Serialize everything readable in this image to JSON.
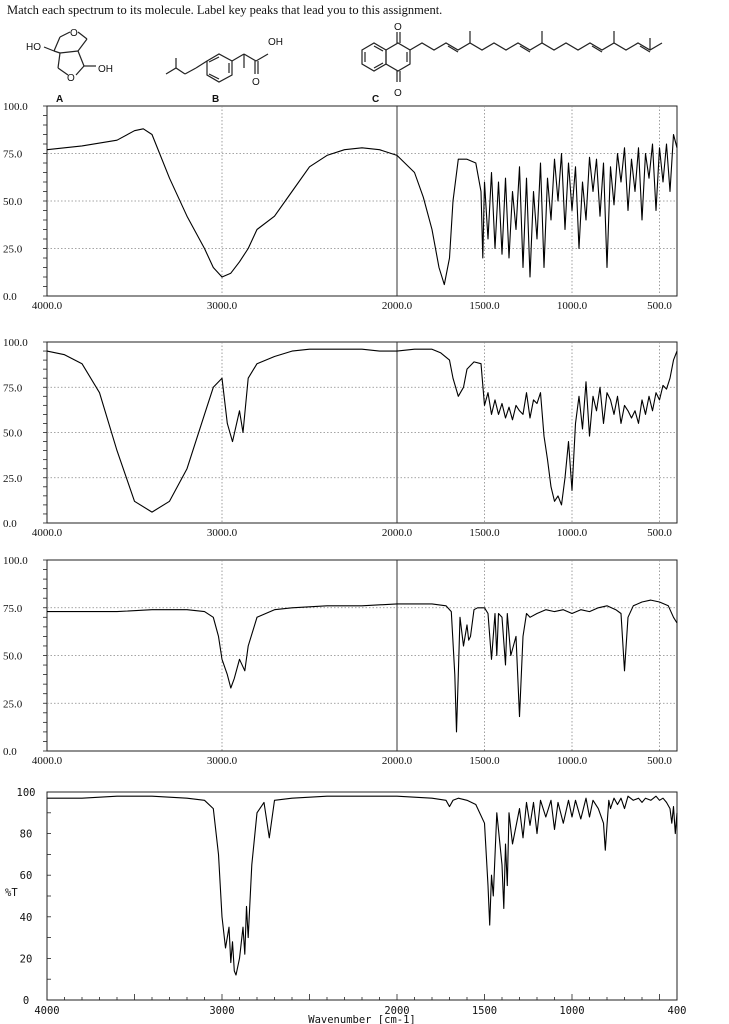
{
  "header": {
    "instruction": "Match each spectrum to its molecule. Label key peaks that lead you to this assignment."
  },
  "molecules": [
    {
      "label": "A",
      "atoms": [
        "HO",
        "O",
        "O",
        "OH"
      ]
    },
    {
      "label": "B",
      "atoms": [
        "OH",
        "O"
      ]
    },
    {
      "label": "C",
      "atoms": [
        "O",
        "O"
      ]
    }
  ],
  "chart_data": [
    {
      "type": "line",
      "xlim": [
        4000,
        400
      ],
      "ylim": [
        0,
        100
      ],
      "xticks": [
        "4000.0",
        "3000.0",
        "2000.0",
        "1500.0",
        "1000.0",
        "500.0"
      ],
      "yticks": [
        "100.0",
        "75.0",
        "50.0",
        "25.0",
        "0.0"
      ],
      "grid": true,
      "x": [
        4000,
        3800,
        3600,
        3500,
        3450,
        3400,
        3300,
        3200,
        3100,
        3050,
        3000,
        2950,
        2900,
        2850,
        2800,
        2700,
        2600,
        2500,
        2400,
        2300,
        2200,
        2100,
        2000,
        1900,
        1850,
        1800,
        1760,
        1730,
        1700,
        1680,
        1650,
        1600,
        1550,
        1520,
        1510,
        1500,
        1480,
        1460,
        1440,
        1420,
        1400,
        1380,
        1360,
        1340,
        1320,
        1300,
        1280,
        1260,
        1240,
        1220,
        1200,
        1180,
        1160,
        1140,
        1120,
        1100,
        1080,
        1060,
        1040,
        1020,
        1000,
        980,
        960,
        940,
        920,
        900,
        880,
        860,
        840,
        820,
        800,
        780,
        760,
        740,
        720,
        700,
        680,
        660,
        640,
        620,
        600,
        580,
        560,
        540,
        520,
        500,
        480,
        460,
        440,
        420,
        400
      ],
      "y": [
        77,
        79,
        82,
        87,
        88,
        85,
        62,
        42,
        25,
        15,
        10,
        12,
        18,
        25,
        35,
        42,
        55,
        68,
        74,
        77,
        78,
        77,
        74,
        65,
        52,
        35,
        15,
        6,
        20,
        50,
        72,
        72,
        70,
        55,
        20,
        60,
        30,
        65,
        25,
        60,
        22,
        62,
        20,
        55,
        35,
        68,
        15,
        62,
        10,
        55,
        30,
        70,
        15,
        62,
        40,
        72,
        50,
        75,
        35,
        70,
        45,
        68,
        25,
        60,
        40,
        73,
        55,
        72,
        42,
        70,
        15,
        68,
        48,
        75,
        60,
        78,
        45,
        72,
        55,
        78,
        40,
        75,
        62,
        80,
        45,
        78,
        60,
        80,
        55,
        85,
        78
      ]
    },
    {
      "type": "line",
      "xlim": [
        4000,
        400
      ],
      "ylim": [
        0,
        100
      ],
      "xticks": [
        "4000.0",
        "3000.0",
        "2000.0",
        "1500.0",
        "1000.0",
        "500.0"
      ],
      "yticks": [
        "100.0",
        "75.0",
        "50.0",
        "25.0",
        "0.0"
      ],
      "grid": true,
      "x": [
        4000,
        3900,
        3800,
        3700,
        3600,
        3500,
        3400,
        3300,
        3200,
        3100,
        3050,
        3000,
        2970,
        2940,
        2900,
        2880,
        2850,
        2800,
        2700,
        2600,
        2500,
        2400,
        2300,
        2200,
        2100,
        2000,
        1900,
        1800,
        1750,
        1700,
        1680,
        1650,
        1620,
        1600,
        1560,
        1520,
        1500,
        1480,
        1460,
        1440,
        1420,
        1400,
        1380,
        1360,
        1340,
        1320,
        1300,
        1280,
        1260,
        1240,
        1220,
        1200,
        1180,
        1160,
        1140,
        1120,
        1100,
        1080,
        1060,
        1040,
        1020,
        1000,
        980,
        960,
        940,
        920,
        900,
        880,
        860,
        840,
        820,
        800,
        780,
        760,
        740,
        720,
        700,
        680,
        660,
        640,
        620,
        600,
        580,
        560,
        540,
        520,
        500,
        480,
        460,
        440,
        420,
        400
      ],
      "y": [
        95,
        93,
        88,
        72,
        40,
        12,
        6,
        12,
        30,
        60,
        75,
        80,
        55,
        45,
        62,
        50,
        80,
        88,
        92,
        95,
        96,
        96,
        96,
        96,
        95,
        95,
        96,
        96,
        94,
        90,
        80,
        70,
        75,
        85,
        89,
        88,
        65,
        72,
        60,
        68,
        60,
        66,
        58,
        64,
        57,
        65,
        62,
        60,
        72,
        58,
        68,
        66,
        72,
        48,
        35,
        20,
        12,
        15,
        10,
        25,
        45,
        18,
        55,
        70,
        52,
        78,
        48,
        70,
        62,
        75,
        55,
        72,
        68,
        60,
        70,
        55,
        65,
        62,
        58,
        62,
        55,
        68,
        60,
        70,
        62,
        72,
        68,
        76,
        74,
        80,
        90,
        95
      ]
    },
    {
      "type": "line",
      "xlim": [
        4000,
        400
      ],
      "ylim": [
        0,
        100
      ],
      "xticks": [
        "4000.0",
        "3000.0",
        "2000.0",
        "1500.0",
        "1000.0",
        "500.0"
      ],
      "yticks": [
        "100.0",
        "75.0",
        "50.0",
        "25.0",
        "0.0"
      ],
      "grid": true,
      "x": [
        4000,
        3800,
        3600,
        3400,
        3200,
        3100,
        3050,
        3020,
        3000,
        2970,
        2950,
        2930,
        2900,
        2870,
        2850,
        2800,
        2700,
        2600,
        2400,
        2200,
        2000,
        1800,
        1720,
        1690,
        1670,
        1660,
        1650,
        1640,
        1620,
        1600,
        1590,
        1580,
        1560,
        1540,
        1500,
        1480,
        1460,
        1440,
        1430,
        1420,
        1400,
        1380,
        1370,
        1350,
        1320,
        1300,
        1280,
        1260,
        1240,
        1200,
        1150,
        1100,
        1050,
        1000,
        950,
        900,
        850,
        800,
        750,
        720,
        700,
        680,
        650,
        600,
        550,
        500,
        450,
        420,
        400
      ],
      "y": [
        73,
        73,
        73,
        74,
        74,
        73,
        70,
        60,
        48,
        40,
        33,
        38,
        48,
        42,
        55,
        70,
        74,
        75,
        76,
        76,
        77,
        77,
        76,
        73,
        40,
        10,
        40,
        70,
        55,
        66,
        58,
        60,
        74,
        75,
        75,
        72,
        48,
        72,
        50,
        72,
        70,
        45,
        72,
        50,
        60,
        18,
        60,
        72,
        70,
        72,
        74,
        73,
        74,
        72,
        74,
        73,
        75,
        76,
        74,
        72,
        42,
        70,
        76,
        78,
        79,
        78,
        76,
        70,
        67
      ]
    },
    {
      "type": "line",
      "xlim": [
        4000,
        400
      ],
      "ylim": [
        0,
        100
      ],
      "xticks": [
        "4000",
        "3000",
        "2000",
        "1500",
        "1000",
        "400"
      ],
      "yticks": [
        "100",
        "80",
        "60",
        "40",
        "20",
        "0"
      ],
      "ylabel": "%T",
      "xlabel": "Wavenumber [cm-1]",
      "grid": false,
      "x": [
        4000,
        3800,
        3600,
        3400,
        3200,
        3100,
        3050,
        3020,
        3000,
        2980,
        2960,
        2950,
        2940,
        2930,
        2920,
        2900,
        2880,
        2870,
        2860,
        2850,
        2830,
        2800,
        2760,
        2730,
        2700,
        2600,
        2400,
        2200,
        2000,
        1800,
        1720,
        1700,
        1680,
        1650,
        1600,
        1550,
        1500,
        1480,
        1470,
        1460,
        1450,
        1430,
        1400,
        1390,
        1380,
        1370,
        1360,
        1340,
        1300,
        1280,
        1260,
        1240,
        1220,
        1200,
        1180,
        1150,
        1120,
        1100,
        1080,
        1050,
        1020,
        1000,
        980,
        950,
        920,
        900,
        880,
        850,
        820,
        810,
        800,
        790,
        780,
        760,
        740,
        720,
        700,
        680,
        650,
        620,
        600,
        580,
        550,
        520,
        500,
        480,
        460,
        440,
        430,
        420,
        410,
        400
      ],
      "y": [
        97,
        97,
        98,
        98,
        97,
        96,
        92,
        70,
        40,
        25,
        35,
        18,
        28,
        14,
        12,
        20,
        35,
        22,
        45,
        30,
        65,
        90,
        95,
        78,
        96,
        97,
        98,
        98,
        98,
        97,
        96,
        93,
        96,
        97,
        96,
        94,
        85,
        55,
        36,
        60,
        50,
        90,
        65,
        44,
        75,
        55,
        90,
        75,
        92,
        78,
        95,
        84,
        95,
        80,
        96,
        88,
        96,
        82,
        95,
        85,
        96,
        88,
        96,
        87,
        97,
        88,
        96,
        92,
        85,
        72,
        84,
        96,
        92,
        97,
        94,
        97,
        92,
        98,
        96,
        97,
        95,
        97,
        96,
        98,
        96,
        97,
        95,
        92,
        85,
        93,
        80,
        90
      ]
    }
  ]
}
